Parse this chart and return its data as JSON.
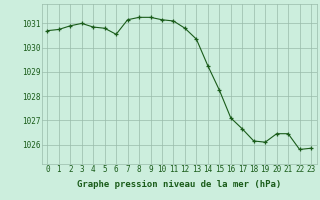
{
  "x": [
    0,
    1,
    2,
    3,
    4,
    5,
    6,
    7,
    8,
    9,
    10,
    11,
    12,
    13,
    14,
    15,
    16,
    17,
    18,
    19,
    20,
    21,
    22,
    23
  ],
  "y": [
    1030.7,
    1030.75,
    1030.9,
    1031.0,
    1030.85,
    1030.8,
    1030.55,
    1031.15,
    1031.25,
    1031.25,
    1031.15,
    1031.1,
    1030.8,
    1030.35,
    1029.25,
    1028.25,
    1027.1,
    1026.65,
    1026.15,
    1026.1,
    1026.45,
    1026.45,
    1025.8,
    1025.85
  ],
  "line_color": "#1a5c1a",
  "marker_color": "#1a5c1a",
  "bg_color": "#cceedd",
  "grid_color": "#99bbaa",
  "xlabel": "Graphe pression niveau de la mer (hPa)",
  "xlabel_color": "#1a5c1a",
  "tick_color": "#1a5c1a",
  "ylim_min": 1025.2,
  "ylim_max": 1031.8,
  "yticks": [
    1026,
    1027,
    1028,
    1029,
    1030,
    1031
  ],
  "xticks": [
    0,
    1,
    2,
    3,
    4,
    5,
    6,
    7,
    8,
    9,
    10,
    11,
    12,
    13,
    14,
    15,
    16,
    17,
    18,
    19,
    20,
    21,
    22,
    23
  ],
  "xtick_labels": [
    "0",
    "1",
    "2",
    "3",
    "4",
    "5",
    "6",
    "7",
    "8",
    "9",
    "10",
    "11",
    "12",
    "13",
    "14",
    "15",
    "16",
    "17",
    "18",
    "19",
    "20",
    "21",
    "22",
    "23"
  ],
  "tick_fontsize": 5.5,
  "xlabel_fontsize": 6.5
}
